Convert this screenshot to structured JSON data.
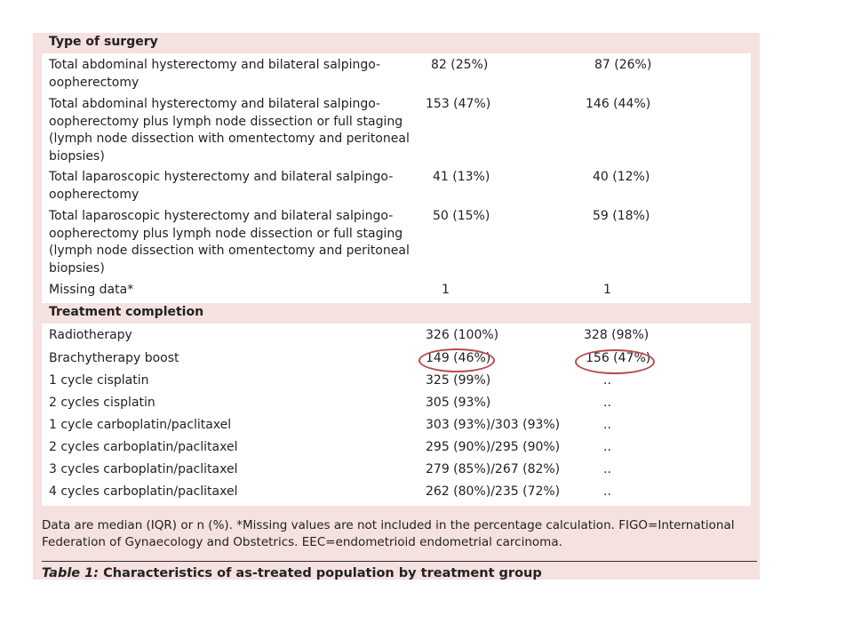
{
  "sections": [
    {
      "header": "Type of surgery",
      "rows": [
        {
          "label": "Total abdominal hysterectomy and bilateral salpingo-oopherectomy",
          "col1": "82 (25%)",
          "col2": "87 (26%)"
        },
        {
          "label": "Total abdominal hysterectomy and bilateral salpingo-oopherectomy plus lymph node dissection or full staging (lymph node dissection with omentectomy and peritoneal biopsies)",
          "col1": "153 (47%)",
          "col2": "146 (44%)"
        },
        {
          "label": "Total laparoscopic hysterectomy and bilateral salpingo-oopherectomy",
          "col1": "41 (13%)",
          "col2": "40 (12%)"
        },
        {
          "label": "Total laparoscopic hysterectomy and bilateral salpingo-oopherectomy plus lymph node dissection or full staging (lymph node dissection with omentectomy and peritoneal biopsies)",
          "col1": "50 (15%)",
          "col2": "59 (18%)"
        },
        {
          "label": "Missing data*",
          "col1": "1",
          "col2": "1"
        }
      ]
    },
    {
      "header": "Treatment completion",
      "rows": [
        {
          "label": "Radiotherapy",
          "col1": "326 (100%)",
          "col2": "328 (98%)"
        },
        {
          "label": "Brachytherapy boost",
          "col1": "149 (46%)",
          "col2": "156 (47%)"
        },
        {
          "label": "1 cycle cisplatin",
          "col1": "325 (99%)",
          "col2": ".."
        },
        {
          "label": "2 cycles cisplatin",
          "col1": "305 (93%)",
          "col2": ".."
        },
        {
          "label": "1 cycle carboplatin/paclitaxel",
          "col1": "303 (93%)/303 (93%)",
          "col2": ".."
        },
        {
          "label": "2 cycles carboplatin/paclitaxel",
          "col1": "295 (90%)/295 (90%)",
          "col2": ".."
        },
        {
          "label": "3 cycles carboplatin/paclitaxel",
          "col1": "279 (85%)/267 (82%)",
          "col2": ".."
        },
        {
          "label": "4 cycles carboplatin/paclitaxel",
          "col1": "262 (80%)/235 (72%)",
          "col2": ".."
        }
      ]
    }
  ],
  "footnote": "Data are median (IQR) or n (%). *Missing values are not included in the percentage calculation. FIGO=International Federation of Gynaecology and Obstetrics. EEC=endometrioid endometrial carcinoma.",
  "caption": {
    "table_number": "Table 1:",
    "title": "Characteristics of as-treated population by treatment group"
  },
  "annotation_color": "#b34a4a",
  "panel_color": "#f5e1df"
}
